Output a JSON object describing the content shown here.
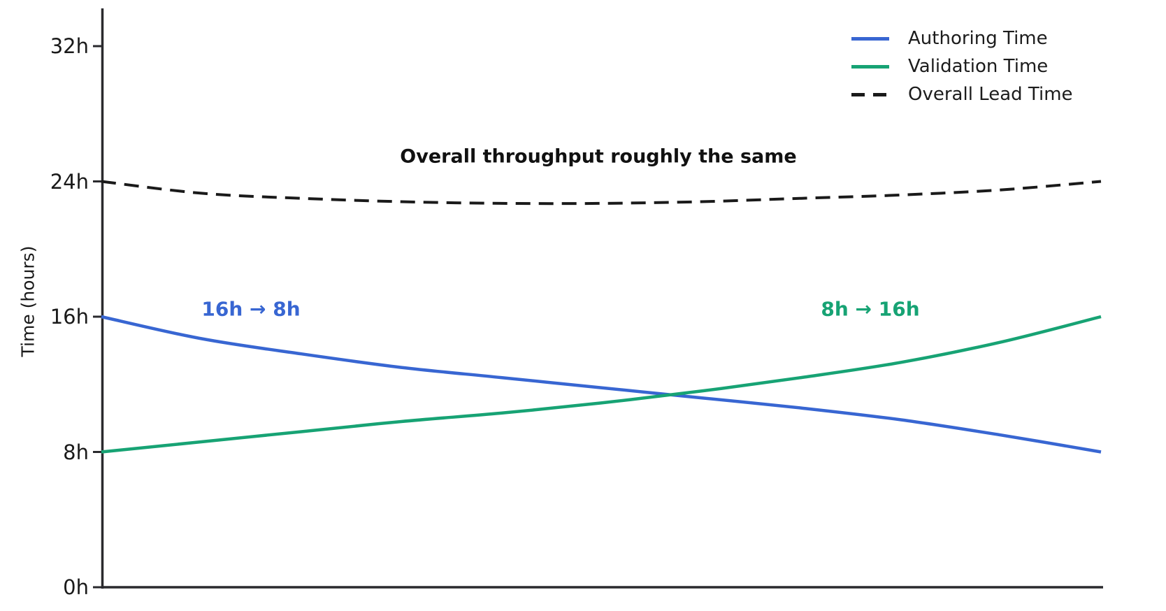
{
  "colors": {
    "authoring_blue": "#3866d2",
    "validation_green": "#17a374",
    "lead_black": "#1a1a1a",
    "axis": "#2a2a2e",
    "text": "#1a1a1a",
    "background": "#ffffff"
  },
  "chart_data": {
    "type": "line",
    "title": "",
    "xlabel": "",
    "ylabel": "Time (hours)",
    "ylim": [
      0,
      32
    ],
    "yticks": [
      0,
      8,
      16,
      24,
      32
    ],
    "ytick_labels": [
      "0h",
      "8h",
      "16h",
      "24h",
      "32h"
    ],
    "xtick_labels": [],
    "grid": false,
    "legend_position": "top-right",
    "x": [
      0,
      0.1,
      0.2,
      0.3,
      0.4,
      0.5,
      0.6,
      0.7,
      0.8,
      0.9,
      1.0
    ],
    "series": [
      {
        "name": "Authoring Time",
        "color": "#3866d2",
        "dash": false,
        "start_value_hours": 16,
        "end_value_hours": 8,
        "values": [
          16.0,
          14.7,
          13.8,
          13.0,
          12.4,
          11.8,
          11.2,
          10.6,
          9.9,
          9.0,
          8.0
        ]
      },
      {
        "name": "Validation Time",
        "color": "#17a374",
        "dash": false,
        "start_value_hours": 8,
        "end_value_hours": 16,
        "values": [
          8.0,
          8.6,
          9.2,
          9.8,
          10.3,
          10.9,
          11.6,
          12.4,
          13.3,
          14.5,
          16.0
        ]
      },
      {
        "name": "Overall Lead Time",
        "color": "#1a1a1a",
        "dash": true,
        "start_value_hours": 24,
        "end_value_hours": 24,
        "values": [
          24.0,
          23.3,
          23.0,
          22.8,
          22.7,
          22.7,
          22.8,
          23.0,
          23.2,
          23.5,
          24.0
        ]
      }
    ],
    "annotations": [
      {
        "text": "Overall throughput roughly the same",
        "color": "#111111"
      },
      {
        "text": "16h → 8h",
        "color": "#3866d2"
      },
      {
        "text": "8h → 16h",
        "color": "#17a374"
      }
    ]
  }
}
